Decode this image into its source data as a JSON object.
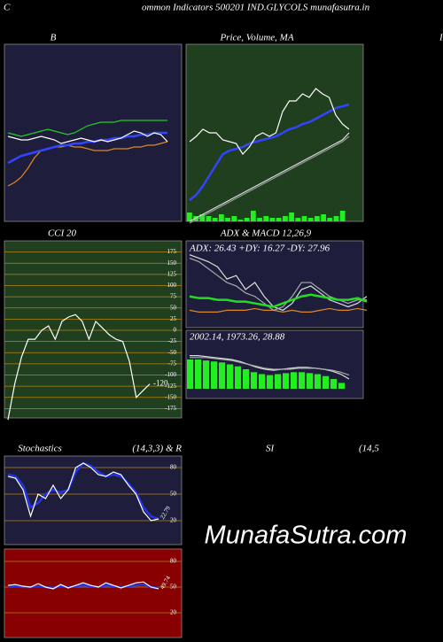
{
  "header": {
    "left": "C",
    "title": "ommon  Indicators 500201 IND.GLYCOLS munafasutra.in",
    "right": "I"
  },
  "watermark": "MunafaSutra.com",
  "rsi": {
    "title": "SI",
    "params": "(14,5"
  },
  "chart_data": [
    {
      "type": "line",
      "title": "B",
      "background": "#1e1e3c",
      "ylim": [
        0,
        100
      ],
      "series": [
        {
          "color": "#22cc22",
          "values": [
            50,
            49,
            48,
            49,
            50,
            51,
            52,
            51,
            50,
            49,
            50,
            52,
            54,
            55,
            56,
            56,
            56,
            57,
            57,
            57,
            57,
            57,
            57,
            57,
            57
          ]
        },
        {
          "color": "#dd8822",
          "values": [
            20,
            22,
            25,
            30,
            36,
            40,
            41,
            42,
            42,
            43,
            42,
            42,
            41,
            40,
            40,
            40,
            41,
            41,
            41,
            42,
            42,
            43,
            43,
            44,
            45
          ]
        },
        {
          "color": "#3344ff",
          "values": [
            33,
            35,
            37,
            38,
            39,
            40,
            41,
            42,
            43,
            43,
            44,
            44,
            45,
            45,
            46,
            46,
            47,
            47,
            48,
            48,
            49,
            49,
            50,
            50,
            50
          ]
        },
        {
          "color": "#ffffff",
          "values": [
            48,
            47,
            46,
            46,
            47,
            48,
            47,
            46,
            44,
            45,
            46,
            47,
            46,
            45,
            46,
            45,
            46,
            47,
            49,
            51,
            50,
            48,
            50,
            49,
            45
          ]
        }
      ]
    },
    {
      "type": "line",
      "title": "Price, Volume, MA",
      "background": "#1f3f1f",
      "ylim": [
        0,
        100
      ],
      "bars": {
        "color": "#22ee22",
        "values": [
          5,
          3,
          4,
          3,
          2,
          4,
          2,
          3,
          1,
          2,
          6,
          2,
          3,
          2,
          2,
          3,
          5,
          2,
          3,
          2,
          3,
          4,
          2,
          3,
          6
        ]
      },
      "series": [
        {
          "color": "#dddddd",
          "values": [
            0,
            2,
            4,
            6,
            8,
            10,
            12,
            14,
            16,
            18,
            20,
            22,
            24,
            26,
            28,
            30,
            32,
            34,
            36,
            38,
            40,
            42,
            44,
            46,
            50
          ]
        },
        {
          "color": "#999999",
          "values": [
            -1,
            1,
            3,
            5,
            7,
            9,
            11,
            13,
            15,
            17,
            19,
            21,
            23,
            25,
            27,
            29,
            31,
            33,
            35,
            37,
            39,
            41,
            43,
            45,
            48
          ]
        },
        {
          "color": "#3344ff",
          "values": [
            12,
            15,
            20,
            26,
            32,
            38,
            40,
            41,
            42,
            44,
            45,
            46,
            47,
            48,
            50,
            52,
            53,
            55,
            56,
            58,
            60,
            62,
            64,
            65,
            66
          ]
        },
        {
          "color": "#ffffff",
          "values": [
            45,
            48,
            52,
            50,
            50,
            46,
            45,
            44,
            38,
            42,
            48,
            50,
            48,
            50,
            62,
            68,
            68,
            72,
            70,
            75,
            72,
            70,
            60,
            55,
            52
          ]
        }
      ]
    },
    {
      "type": "line",
      "title": "CCI 20",
      "background": "#1f3f1f",
      "ylim": [
        -196,
        200
      ],
      "yticks": [
        175,
        150,
        125,
        100,
        75,
        50,
        25,
        0,
        -25,
        -50,
        -75,
        -100,
        -125,
        -150,
        -175
      ],
      "end_label": "-120",
      "series": [
        {
          "color": "#ffffff",
          "values": [
            -200,
            -120,
            -60,
            -20,
            -20,
            0,
            10,
            -20,
            20,
            30,
            35,
            20,
            -20,
            20,
            5,
            -10,
            -20,
            -25,
            -70,
            -150,
            -135,
            -120
          ]
        }
      ]
    },
    {
      "type": "line",
      "title": "ADX  & MACD 12,26,9",
      "annotation": "ADX: 26.43 +DY: 16.27 -DY: 27.96",
      "background": "#1e1e3c",
      "ylim": [
        0,
        50
      ],
      "series": [
        {
          "color": "#dd8822",
          "values": [
            10,
            9,
            9,
            9,
            10,
            10,
            10,
            11,
            10,
            10,
            9,
            10,
            9,
            9,
            10,
            11,
            10,
            10,
            11,
            10
          ]
        },
        {
          "color": "#dddddd",
          "values": [
            42,
            40,
            38,
            35,
            28,
            30,
            22,
            26,
            18,
            12,
            10,
            14,
            22,
            24,
            20,
            16,
            14,
            12,
            14,
            18
          ]
        },
        {
          "color": "#aaaaaa",
          "values": [
            40,
            38,
            34,
            30,
            26,
            24,
            20,
            18,
            14,
            10,
            12,
            18,
            26,
            26,
            22,
            18,
            16,
            14,
            16,
            16
          ]
        },
        {
          "color": "#22dd22",
          "values": [
            18,
            17,
            17,
            16,
            16,
            15,
            15,
            14,
            13,
            12,
            14,
            16,
            18,
            19,
            18,
            17,
            16,
            16,
            17,
            15
          ]
        }
      ]
    },
    {
      "type": "line",
      "annotation": "2002.14,  1973.26,  28.88",
      "background": "#1e1e3c",
      "ylim": [
        -10,
        60
      ],
      "bars": {
        "color": "#22ee22",
        "values": [
          30,
          30,
          29,
          28,
          27,
          25,
          23,
          20,
          17,
          15,
          14,
          15,
          16,
          17,
          17,
          16,
          15,
          13,
          10,
          6
        ]
      },
      "series": [
        {
          "color": "#dddddd",
          "values": [
            34,
            34,
            33,
            32,
            31,
            30,
            28,
            25,
            22,
            20,
            19,
            20,
            21,
            22,
            22,
            21,
            20,
            18,
            15,
            10
          ]
        },
        {
          "color": "#aaaaaa",
          "values": [
            32,
            32,
            32,
            31,
            30,
            29,
            27,
            25,
            23,
            21,
            20,
            20,
            20,
            21,
            21,
            21,
            20,
            19,
            17,
            14
          ]
        }
      ]
    },
    {
      "type": "line",
      "title": "Stochastics",
      "subtitle": "(14,3,3) & R",
      "background": "#1e1e3c",
      "ylim": [
        -7,
        93
      ],
      "yticks": [
        80,
        50,
        20
      ],
      "end_label": "22.79",
      "series": [
        {
          "color": "#2233ee",
          "values": [
            72,
            70,
            60,
            35,
            40,
            50,
            55,
            52,
            55,
            75,
            85,
            82,
            75,
            70,
            72,
            70,
            62,
            52,
            35,
            25,
            22
          ]
        },
        {
          "color": "#ffffff",
          "values": [
            70,
            68,
            55,
            25,
            50,
            45,
            60,
            45,
            55,
            80,
            85,
            80,
            72,
            70,
            75,
            72,
            60,
            50,
            30,
            20,
            22
          ]
        }
      ]
    },
    {
      "type": "line",
      "background": "#880000",
      "ylim": [
        -9,
        94.5
      ],
      "yticks": [
        80,
        50,
        20
      ],
      "end_label": "49.74",
      "series": [
        {
          "color": "#2233ee",
          "values": [
            51,
            51,
            50,
            50,
            51,
            50,
            49,
            51,
            50,
            51,
            52,
            51,
            50,
            52,
            51,
            50,
            51,
            52,
            53,
            50,
            49
          ]
        },
        {
          "color": "#ffffff",
          "values": [
            52,
            53,
            51,
            50,
            54,
            50,
            48,
            53,
            49,
            52,
            55,
            52,
            50,
            55,
            52,
            49,
            52,
            55,
            56,
            50,
            48
          ]
        }
      ]
    }
  ]
}
